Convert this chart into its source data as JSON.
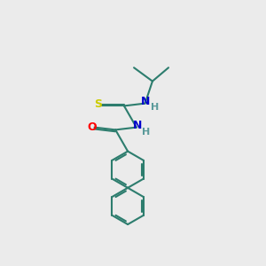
{
  "bg_color": "#ebebeb",
  "bond_color": "#2d7d6e",
  "atom_colors": {
    "S": "#cccc00",
    "O": "#ff0000",
    "N": "#0000cc",
    "H": "#5a9a9a"
  },
  "lw": 1.5,
  "ring_r": 0.7,
  "double_off": 0.07
}
